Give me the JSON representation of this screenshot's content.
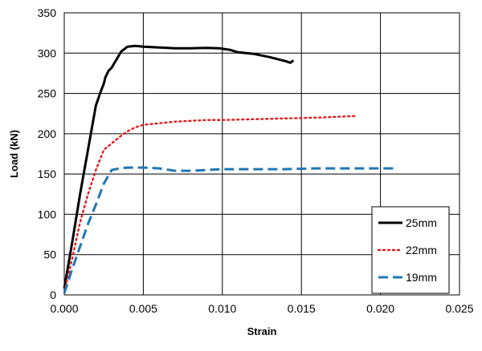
{
  "chart_data": {
    "type": "line",
    "title": "",
    "xlabel": "Strain",
    "ylabel": "Load  (kN)",
    "xlim": [
      0,
      0.025
    ],
    "ylim": [
      0,
      350
    ],
    "xticks": [
      0,
      0.005,
      0.01,
      0.015,
      0.02,
      0.025
    ],
    "xtick_labels": [
      "0.000",
      "0.005",
      "0.010",
      "0.015",
      "0.020",
      "0.025"
    ],
    "yticks": [
      0,
      50,
      100,
      150,
      200,
      250,
      300,
      350
    ],
    "ytick_labels": [
      "0",
      "50",
      "100",
      "150",
      "200",
      "250",
      "300",
      "350"
    ],
    "grid": true,
    "legend_position": "bottom-right",
    "series": [
      {
        "name": "25mm",
        "color": "#000000",
        "line_style": "solid",
        "points": [
          [
            0,
            8
          ],
          [
            0.0005,
            65
          ],
          [
            0.001,
            125
          ],
          [
            0.0015,
            180
          ],
          [
            0.002,
            235
          ],
          [
            0.0023,
            252
          ],
          [
            0.0025,
            262
          ],
          [
            0.0026,
            270
          ],
          [
            0.0028,
            278
          ],
          [
            0.003,
            282
          ],
          [
            0.0033,
            292
          ],
          [
            0.0036,
            302
          ],
          [
            0.004,
            308
          ],
          [
            0.0045,
            309
          ],
          [
            0.005,
            308
          ],
          [
            0.006,
            307
          ],
          [
            0.007,
            306
          ],
          [
            0.008,
            306
          ],
          [
            0.009,
            306.5
          ],
          [
            0.0098,
            306
          ],
          [
            0.0105,
            304
          ],
          [
            0.011,
            301
          ],
          [
            0.012,
            299
          ],
          [
            0.013,
            295
          ],
          [
            0.014,
            290
          ],
          [
            0.0143,
            288
          ],
          [
            0.0145,
            291
          ]
        ]
      },
      {
        "name": "22mm",
        "color": "#e31a1c",
        "line_style": "dotted",
        "points": [
          [
            0,
            4
          ],
          [
            0.0005,
            45
          ],
          [
            0.001,
            90
          ],
          [
            0.0015,
            125
          ],
          [
            0.002,
            155
          ],
          [
            0.0025,
            180
          ],
          [
            0.003,
            188
          ],
          [
            0.0035,
            196
          ],
          [
            0.004,
            203
          ],
          [
            0.0045,
            208
          ],
          [
            0.005,
            211
          ],
          [
            0.006,
            213
          ],
          [
            0.007,
            215
          ],
          [
            0.008,
            216
          ],
          [
            0.009,
            217
          ],
          [
            0.01,
            217
          ],
          [
            0.012,
            218
          ],
          [
            0.014,
            219
          ],
          [
            0.016,
            220
          ],
          [
            0.0185,
            222
          ]
        ]
      },
      {
        "name": "19mm",
        "color": "#1f77b4",
        "line_style": "dashed",
        "points": [
          [
            0,
            2
          ],
          [
            0.0005,
            32
          ],
          [
            0.001,
            60
          ],
          [
            0.0015,
            88
          ],
          [
            0.002,
            112
          ],
          [
            0.0025,
            138
          ],
          [
            0.003,
            155
          ],
          [
            0.0035,
            157
          ],
          [
            0.004,
            158
          ],
          [
            0.005,
            158
          ],
          [
            0.006,
            157
          ],
          [
            0.007,
            154
          ],
          [
            0.008,
            154
          ],
          [
            0.009,
            155
          ],
          [
            0.01,
            156
          ],
          [
            0.012,
            156
          ],
          [
            0.014,
            156
          ],
          [
            0.016,
            157
          ],
          [
            0.018,
            157
          ],
          [
            0.021,
            157
          ]
        ]
      }
    ]
  }
}
